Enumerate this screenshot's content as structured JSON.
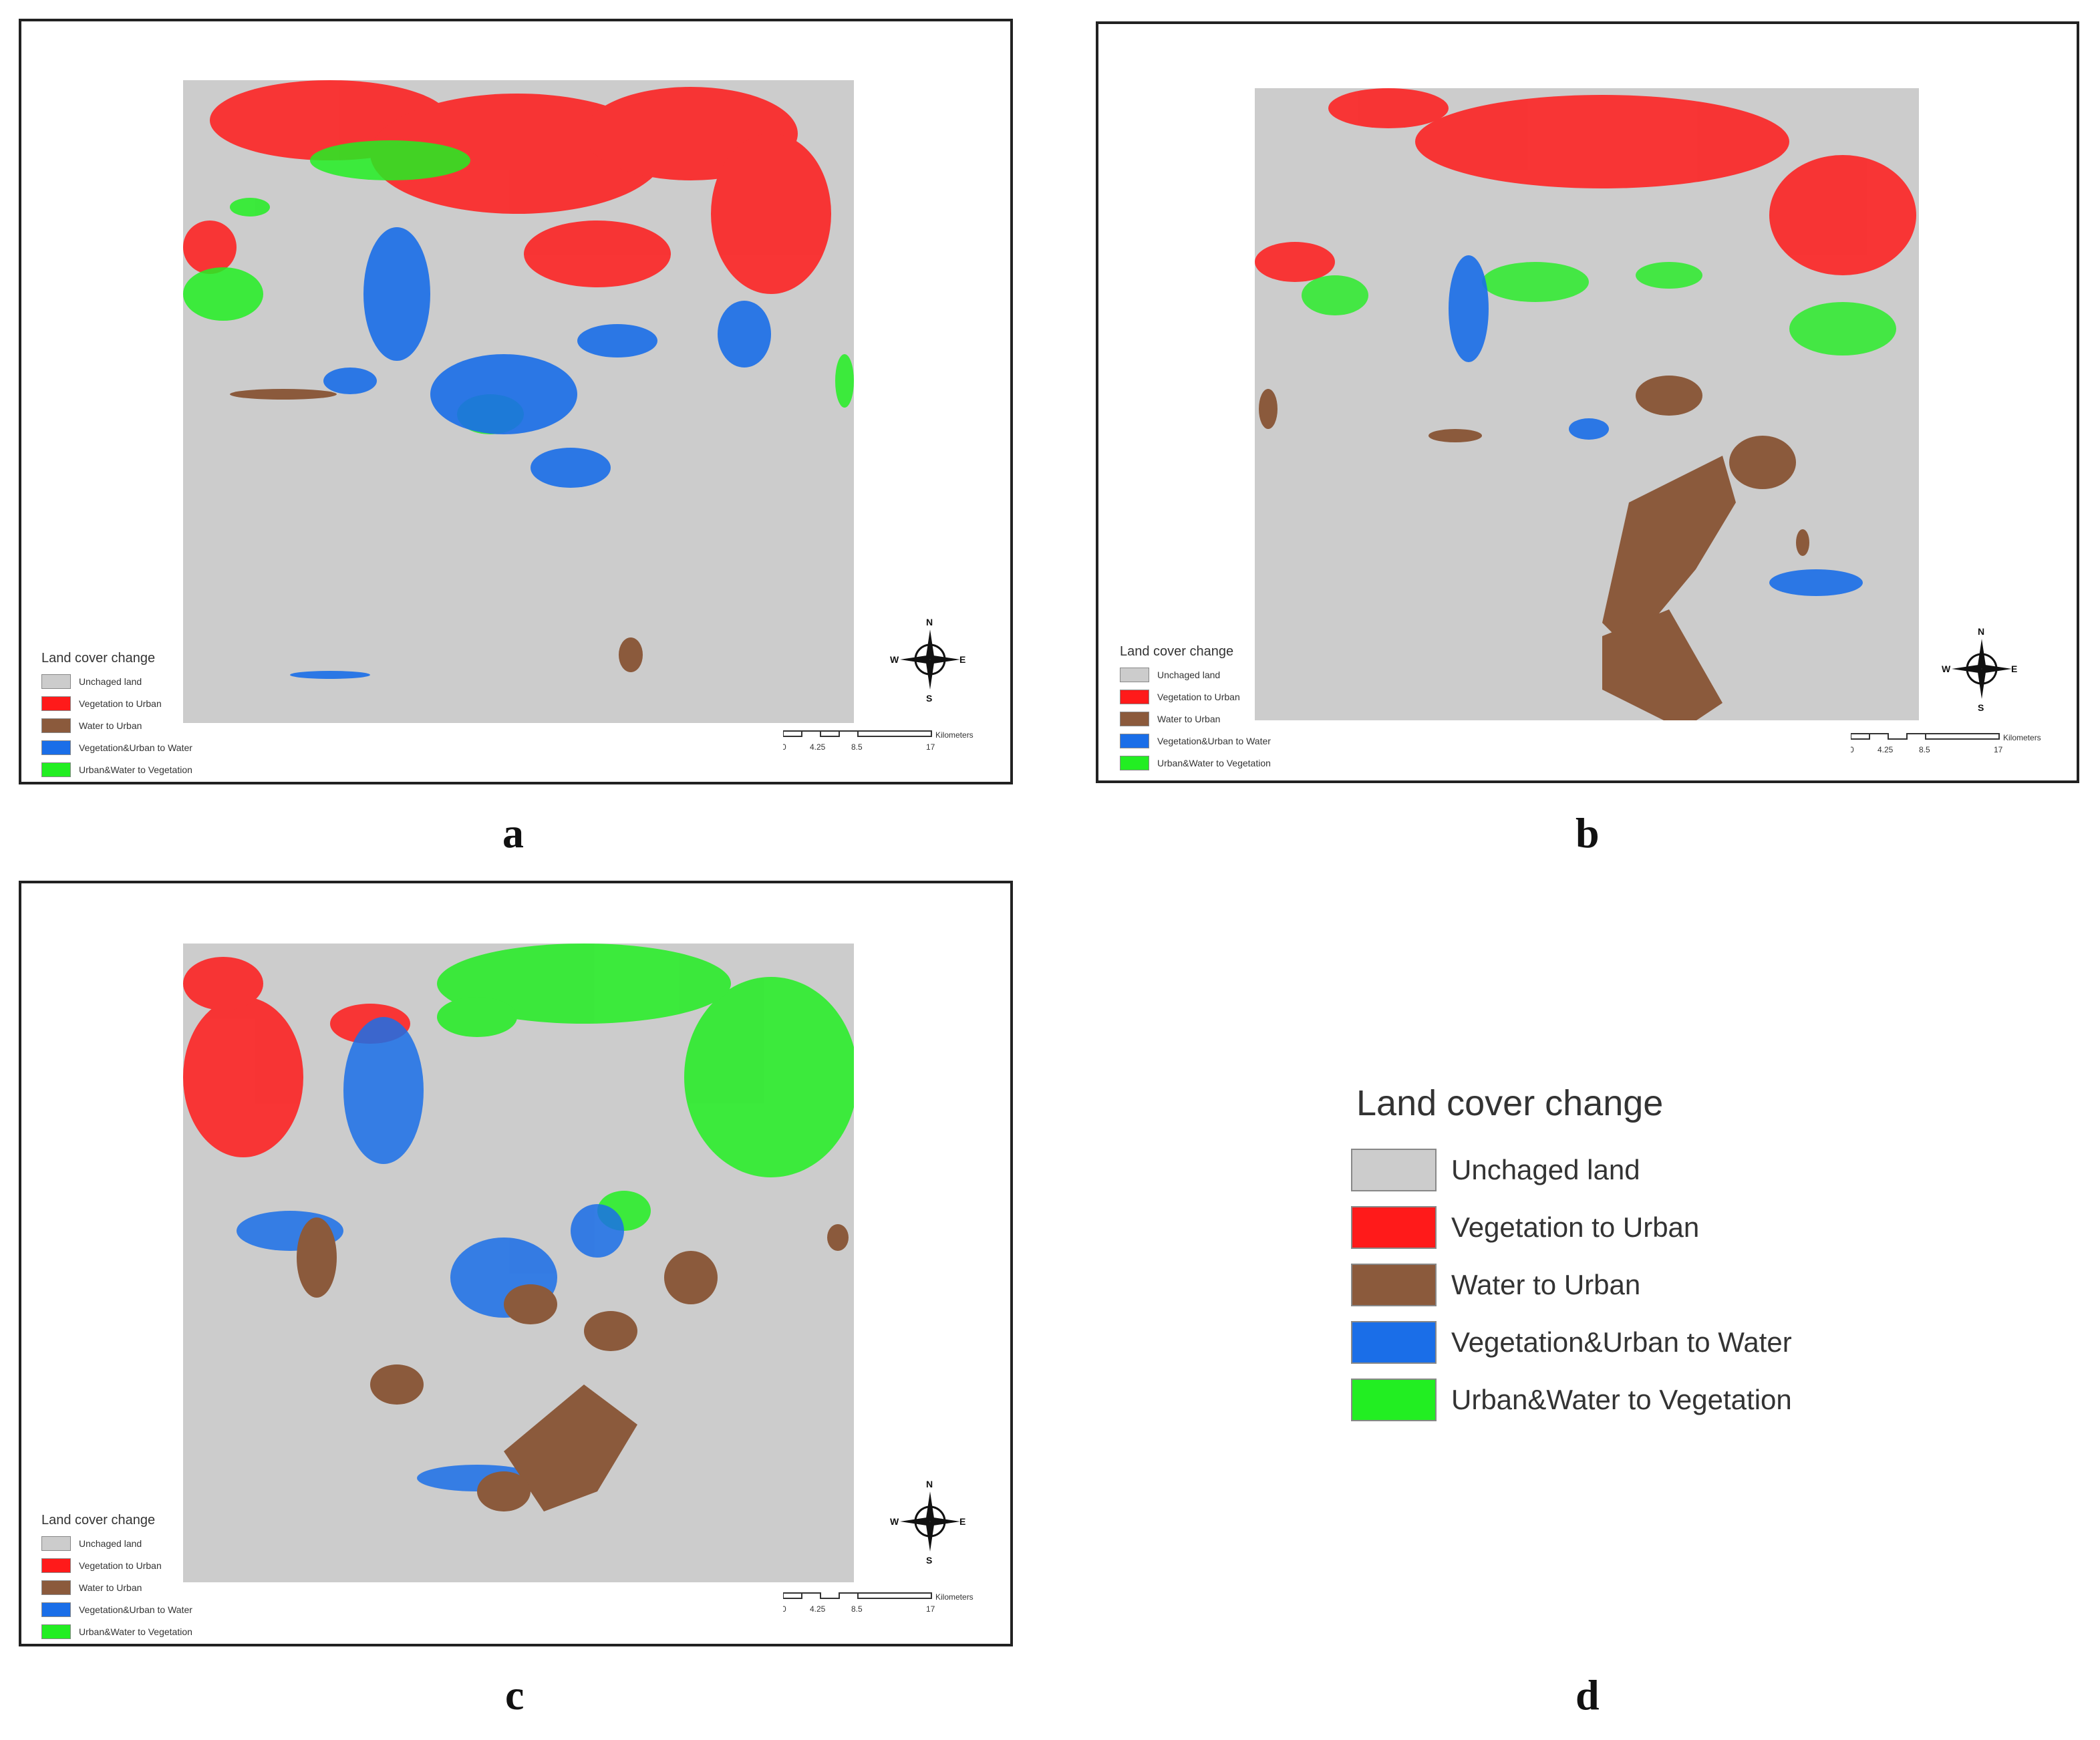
{
  "legend": {
    "title": "Land cover change",
    "items": [
      {
        "label": "Unchaged land",
        "color": "#cccccc"
      },
      {
        "label": "Vegetation to Urban",
        "color": "#ff1a1a"
      },
      {
        "label": "Water to Urban",
        "color": "#8b5a3c"
      },
      {
        "label": "Vegetation&Urban to Water",
        "color": "#1a6ee8"
      },
      {
        "label": "Urban&Water to Vegetation",
        "color": "#22ee22"
      }
    ]
  },
  "compass": {
    "n": "N",
    "s": "S",
    "e": "E",
    "w": "W"
  },
  "scalebar": {
    "ticks": [
      "0",
      "4.25",
      "8.5",
      "17"
    ],
    "unit": "Kilometers"
  },
  "panels": [
    {
      "label": "a"
    },
    {
      "label": "b"
    },
    {
      "label": "c"
    }
  ],
  "legend_panel": {
    "label": "d"
  }
}
